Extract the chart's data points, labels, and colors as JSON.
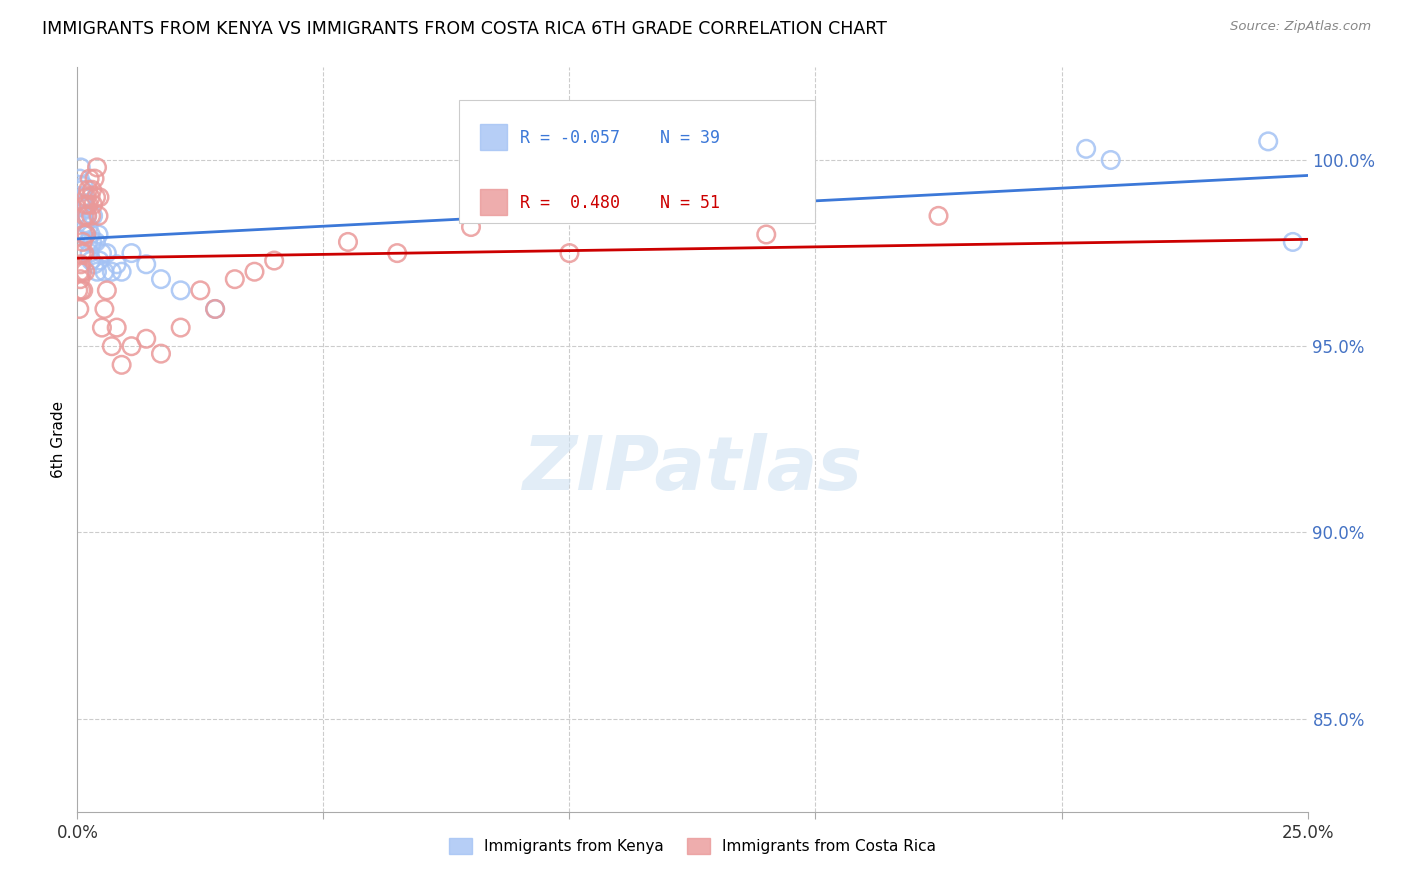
{
  "title": "IMMIGRANTS FROM KENYA VS IMMIGRANTS FROM COSTA RICA 6TH GRADE CORRELATION CHART",
  "source": "Source: ZipAtlas.com",
  "ylabel": "6th Grade",
  "ylabel_right_ticks": [
    85.0,
    90.0,
    95.0,
    100.0
  ],
  "xlim": [
    0.0,
    25.0
  ],
  "ylim": [
    82.5,
    102.5
  ],
  "legend_label1": "Immigrants from Kenya",
  "legend_label2": "Immigrants from Costa Rica",
  "watermark": "ZIPatlas",
  "blue_color": "#a4c2f4",
  "pink_color": "#ea9999",
  "blue_line_color": "#3c78d8",
  "pink_line_color": "#cc0000",
  "grid_color": "#cccccc",
  "kenya_x": [
    0.05,
    0.07,
    0.08,
    0.1,
    0.11,
    0.12,
    0.13,
    0.15,
    0.16,
    0.17,
    0.18,
    0.2,
    0.22,
    0.23,
    0.25,
    0.27,
    0.28,
    0.3,
    0.32,
    0.35,
    0.38,
    0.4,
    0.43,
    0.45,
    0.5,
    0.55,
    0.6,
    0.7,
    0.8,
    0.9,
    1.1,
    1.4,
    1.7,
    2.1,
    2.8,
    20.5,
    21.0,
    24.2,
    24.7
  ],
  "kenya_y": [
    99.5,
    99.8,
    98.8,
    99.2,
    99.0,
    98.5,
    99.3,
    99.0,
    98.3,
    98.7,
    98.0,
    98.5,
    97.8,
    98.2,
    97.5,
    98.0,
    97.3,
    97.8,
    98.5,
    97.2,
    97.8,
    97.0,
    98.0,
    97.3,
    97.5,
    97.0,
    97.5,
    97.0,
    97.2,
    97.0,
    97.5,
    97.2,
    96.8,
    96.5,
    96.0,
    100.3,
    100.0,
    100.5,
    97.8
  ],
  "costa_rica_x": [
    0.02,
    0.04,
    0.05,
    0.06,
    0.07,
    0.08,
    0.09,
    0.1,
    0.11,
    0.12,
    0.13,
    0.14,
    0.15,
    0.16,
    0.17,
    0.18,
    0.19,
    0.2,
    0.22,
    0.23,
    0.25,
    0.27,
    0.28,
    0.3,
    0.32,
    0.35,
    0.38,
    0.4,
    0.43,
    0.45,
    0.5,
    0.55,
    0.6,
    0.7,
    0.8,
    0.9,
    1.1,
    1.4,
    1.7,
    2.1,
    2.5,
    2.8,
    3.2,
    3.6,
    4.0,
    5.5,
    6.5,
    8.0,
    10.0,
    14.0,
    17.5
  ],
  "costa_rica_y": [
    96.5,
    96.0,
    97.0,
    96.8,
    97.2,
    96.5,
    97.5,
    97.0,
    97.8,
    96.5,
    98.0,
    97.5,
    98.5,
    97.0,
    98.8,
    98.0,
    99.0,
    98.5,
    99.2,
    98.8,
    99.5,
    99.0,
    98.5,
    99.2,
    98.8,
    99.5,
    99.0,
    99.8,
    98.5,
    99.0,
    95.5,
    96.0,
    96.5,
    95.0,
    95.5,
    94.5,
    95.0,
    95.2,
    94.8,
    95.5,
    96.5,
    96.0,
    96.8,
    97.0,
    97.3,
    97.8,
    97.5,
    98.2,
    97.5,
    98.0,
    98.5
  ],
  "R_kenya": -0.057,
  "N_kenya": 39,
  "R_costa": 0.48,
  "N_costa": 51
}
